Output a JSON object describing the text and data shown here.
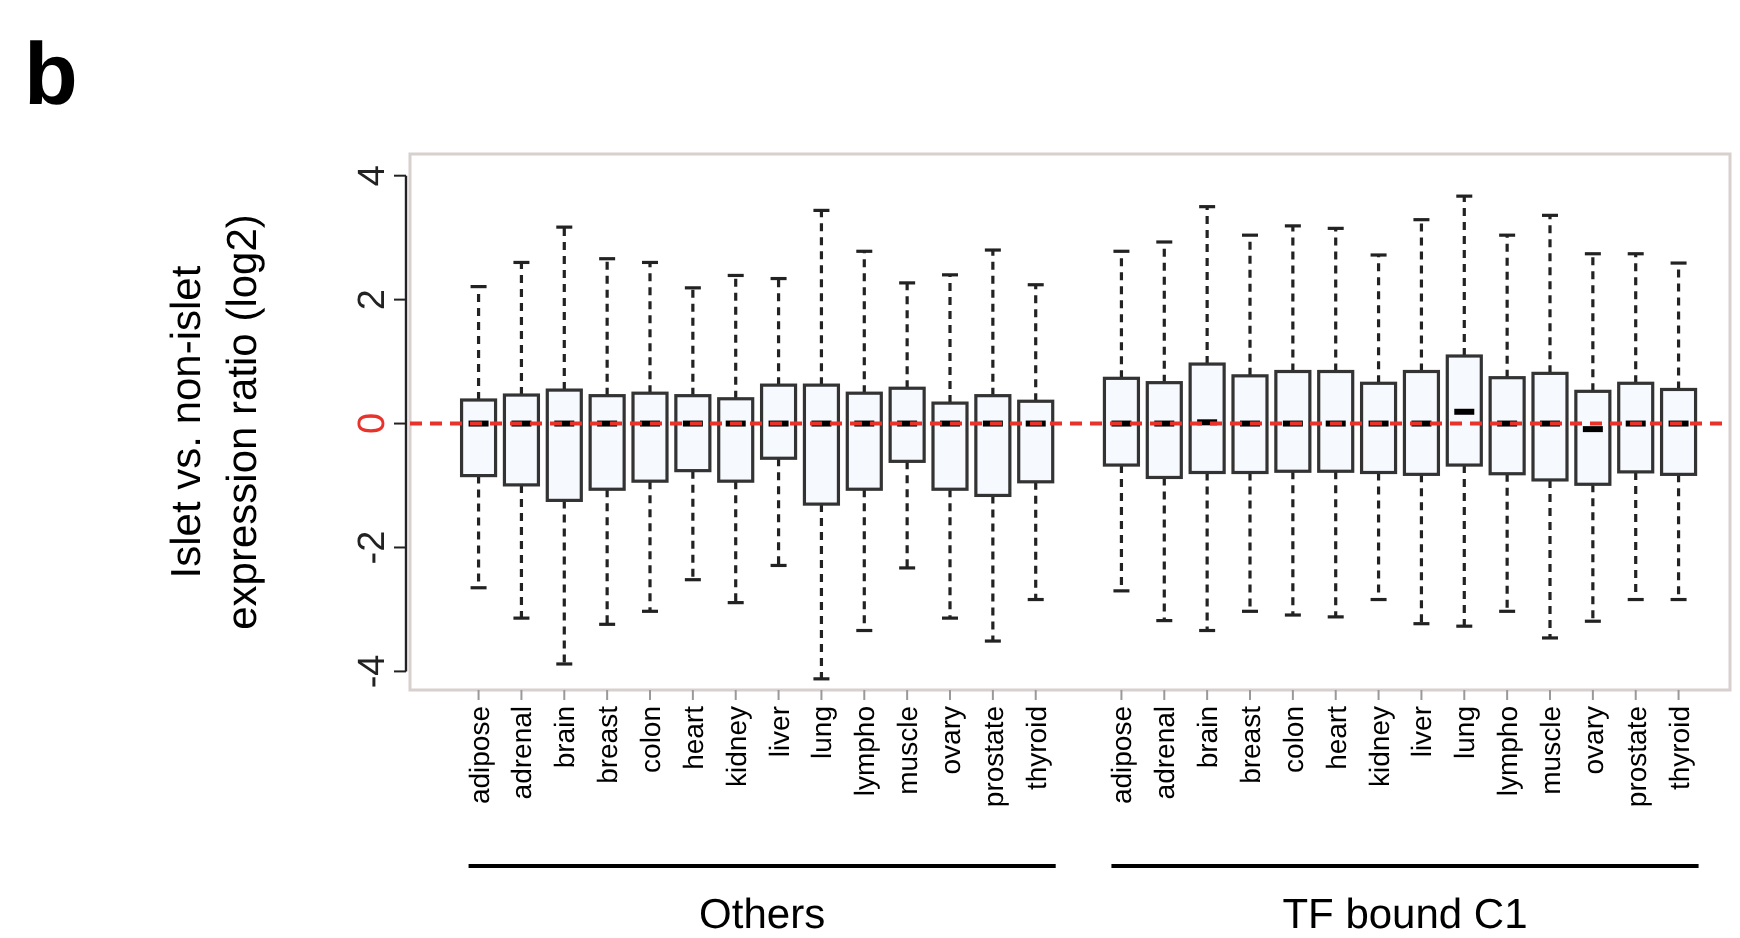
{
  "chart_data": {
    "type": "box",
    "ylabel": "Islet vs. non-islet\nexpression ratio (log2)",
    "annotations": [
      "b",
      "Others",
      "TF bound C1"
    ],
    "categories": [
      "adipose",
      "adrenal",
      "brain",
      "breast",
      "colon",
      "heart",
      "kidney",
      "liver",
      "lung",
      "lympho",
      "muscle",
      "ovary",
      "prostate",
      "thyroid",
      null,
      "adipose",
      "adrenal",
      "brain",
      "breast",
      "colon",
      "heart",
      "kidney",
      "liver",
      "lung",
      "lympho",
      "muscle",
      "ovary",
      "prostate",
      "thyroid"
    ],
    "color": "#333333",
    "boxes": [
      {
        "low": -2.65,
        "q1": -0.84,
        "median": 0,
        "q3": 0.38,
        "high": 2.21
      },
      {
        "low": -3.14,
        "q1": -0.99,
        "median": 0,
        "q3": 0.46,
        "high": 2.6
      },
      {
        "low": -3.88,
        "q1": -1.24,
        "median": 0,
        "q3": 0.54,
        "high": 3.17
      },
      {
        "low": -3.24,
        "q1": -1.06,
        "median": 0,
        "q3": 0.45,
        "high": 2.66
      },
      {
        "low": -3.03,
        "q1": -0.93,
        "median": 0,
        "q3": 0.49,
        "high": 2.6
      },
      {
        "low": -2.52,
        "q1": -0.76,
        "median": 0,
        "q3": 0.45,
        "high": 2.19
      },
      {
        "low": -2.89,
        "q1": -0.93,
        "median": 0,
        "q3": 0.4,
        "high": 2.39
      },
      {
        "low": -2.29,
        "q1": -0.56,
        "median": 0,
        "q3": 0.62,
        "high": 2.34
      },
      {
        "low": -4.12,
        "q1": -1.3,
        "median": 0,
        "q3": 0.62,
        "high": 3.44
      },
      {
        "low": -3.34,
        "q1": -1.06,
        "median": 0,
        "q3": 0.49,
        "high": 2.78
      },
      {
        "low": -2.33,
        "q1": -0.61,
        "median": 0,
        "q3": 0.57,
        "high": 2.27
      },
      {
        "low": -3.14,
        "q1": -1.06,
        "median": 0,
        "q3": 0.33,
        "high": 2.4
      },
      {
        "low": -3.51,
        "q1": -1.16,
        "median": 0,
        "q3": 0.45,
        "high": 2.8
      },
      {
        "low": -2.84,
        "q1": -0.94,
        "median": 0,
        "q3": 0.36,
        "high": 2.24
      },
      null,
      {
        "low": -2.7,
        "q1": -0.67,
        "median": 0,
        "q3": 0.73,
        "high": 2.78
      },
      {
        "low": -3.18,
        "q1": -0.87,
        "median": 0,
        "q3": 0.66,
        "high": 2.93
      },
      {
        "low": -3.34,
        "q1": -0.79,
        "median": 0.02,
        "q3": 0.96,
        "high": 3.5
      },
      {
        "low": -3.03,
        "q1": -0.79,
        "median": 0,
        "q3": 0.77,
        "high": 3.04
      },
      {
        "low": -3.09,
        "q1": -0.77,
        "median": 0,
        "q3": 0.84,
        "high": 3.19
      },
      {
        "low": -3.12,
        "q1": -0.77,
        "median": 0,
        "q3": 0.84,
        "high": 3.15
      },
      {
        "low": -2.84,
        "q1": -0.79,
        "median": 0,
        "q3": 0.65,
        "high": 2.72
      },
      {
        "low": -3.23,
        "q1": -0.82,
        "median": 0,
        "q3": 0.84,
        "high": 3.29
      },
      {
        "low": -3.27,
        "q1": -0.67,
        "median": 0.19,
        "q3": 1.09,
        "high": 3.67
      },
      {
        "low": -3.03,
        "q1": -0.81,
        "median": 0,
        "q3": 0.74,
        "high": 3.04
      },
      {
        "low": -3.46,
        "q1": -0.91,
        "median": 0,
        "q3": 0.81,
        "high": 3.36
      },
      {
        "low": -3.19,
        "q1": -0.98,
        "median": -0.09,
        "q3": 0.52,
        "high": 2.74
      },
      {
        "low": -2.84,
        "q1": -0.78,
        "median": 0,
        "q3": 0.65,
        "high": 2.74
      },
      {
        "low": -2.84,
        "q1": -0.82,
        "median": 0,
        "q3": 0.55,
        "high": 2.59
      }
    ],
    "ylim": [
      -4.3,
      4.35
    ],
    "yticks": [
      -4,
      -2,
      0,
      2,
      4
    ],
    "ref_lines": [
      {
        "axis": "y",
        "value": 0,
        "color": "#e8322a",
        "line_style": "dashed"
      }
    ]
  }
}
